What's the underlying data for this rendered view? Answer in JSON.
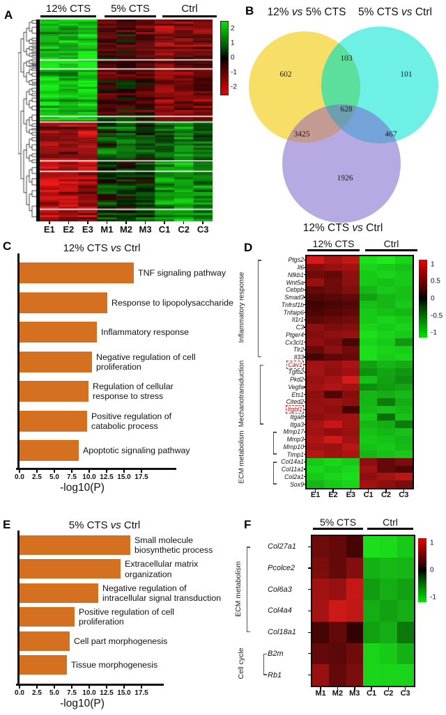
{
  "panel_labels": {
    "a": "A",
    "b": "B",
    "c": "C",
    "d": "D",
    "e": "E",
    "f": "F"
  },
  "panel_a": {
    "groups": [
      {
        "label": "12% CTS"
      },
      {
        "label": "5% CTS"
      },
      {
        "label": "Ctrl"
      }
    ],
    "columns": [
      "E1",
      "E2",
      "E3",
      "M1",
      "M2",
      "M3",
      "C1",
      "C2",
      "C3"
    ],
    "colorbar_ticks": [
      "2",
      "1",
      "0",
      "-1",
      "-2"
    ],
    "heatmap": {
      "rows": 96,
      "scale_max": 2.0,
      "blocks": [
        {
          "until": 0.48,
          "profile": [
            1.5,
            1.35,
            1.6,
            -0.45,
            -0.25,
            -0.5,
            -1.1,
            -0.85,
            -0.75
          ]
        },
        {
          "until": 0.505,
          "profile": [
            1.8,
            1.7,
            1.8,
            0.3,
            0.4,
            0.2,
            -1.2,
            -0.5,
            -0.9
          ]
        },
        {
          "until": 0.7,
          "profile": [
            -1.2,
            -1.05,
            -1.3,
            0.45,
            0.55,
            0.25,
            0.6,
            0.8,
            0.55
          ]
        },
        {
          "until": 1.0,
          "profile": [
            -1.5,
            -1.35,
            -1.25,
            0.25,
            0.15,
            0.4,
            1.1,
            1.35,
            0.95
          ]
        }
      ],
      "separators": [
        0.2,
        0.245,
        0.48,
        0.508,
        0.7,
        0.752,
        0.94
      ]
    }
  },
  "panel_b": {
    "set_labels": [
      "12% vs 5% CTS",
      "5% CTS vs Ctrl",
      "12% CTS vs Ctrl"
    ],
    "counts": {
      "a": "602",
      "b": "101",
      "c": "1926",
      "ab": "103",
      "ac": "3425",
      "bc": "467",
      "abc": "628"
    },
    "colors": {
      "a": "#f6de67",
      "b": "#6ff0e6",
      "c": "#b7a9e2",
      "ab": "#5cdf9d",
      "ac": "#c49b92",
      "bc": "#74a3da",
      "abc": "#6e9fae"
    }
  },
  "chart_data": [
    {
      "id": "panel_c",
      "type": "bar",
      "orientation": "horizontal",
      "title": "12% CTS vs Ctrl",
      "categories": [
        "TNF signaling pathway",
        "Response to lipopolysaccharide",
        "Inflammatory response",
        "Negative regulation of cell proliferation",
        "Regulation of cellular response to stress",
        "Positive regulation of catabolic process",
        "Apoptotic signaling pathway"
      ],
      "category_lines": [
        [
          "TNF signaling pathway"
        ],
        [
          "Response to lipopolysaccharide"
        ],
        [
          "Inflammatory response"
        ],
        [
          "Negative regulation of cell",
          "proliferation"
        ],
        [
          "Regulation of cellular",
          "response to stress"
        ],
        [
          "Positive regulation of",
          "catabolic process"
        ],
        [
          "Apoptotic signaling pathway"
        ]
      ],
      "values": [
        16.4,
        12.6,
        11.1,
        10.4,
        9.9,
        9.7,
        8.5
      ],
      "xticks": [
        0,
        2.5,
        5,
        7.5,
        10,
        12.5,
        15,
        17.5
      ],
      "xlabel": "-log10(P)",
      "xlim": [
        0,
        20
      ],
      "bar_color": "#d4701f"
    },
    {
      "id": "panel_e",
      "type": "bar",
      "orientation": "horizontal",
      "title": "5% CTS vs Ctrl",
      "categories": [
        "Small molecule biosynthetic process",
        "Extracellular matrix organization",
        "Negative regulation of intracellular signal transduction",
        "Positive regulation of cell proliferation",
        "Cell part morphogenesis",
        "Tissue morphogenesis"
      ],
      "category_lines": [
        [
          "Small molecule",
          "biosynthetic process"
        ],
        [
          "Extracellular matrix",
          "organization"
        ],
        [
          "Negative regulation of",
          "intracellular signal transduction"
        ],
        [
          "Positive regulation of cell",
          "proliferation"
        ],
        [
          "Cell part morphogenesis"
        ],
        [
          "Tissue morphogenesis"
        ]
      ],
      "values": [
        15.9,
        14.5,
        11.3,
        7.9,
        7.2,
        6.8
      ],
      "xticks": [
        0,
        2.5,
        5,
        7.5,
        10,
        12.5,
        15,
        17.5
      ],
      "xlabel": "-log10(P)",
      "xlim": [
        0,
        20
      ],
      "bar_color": "#d4701f"
    },
    {
      "id": "panel_d",
      "type": "heatmap",
      "group_headers": [
        "12% CTS",
        "Ctrl"
      ],
      "columns": [
        "E1",
        "E2",
        "E3",
        "C1",
        "C2",
        "C3"
      ],
      "colorbar_ticks": [
        "1",
        "0.5",
        "0",
        "-0.5",
        "-1"
      ],
      "categories": [
        {
          "name": "Inflammatory response",
          "from": 0,
          "to": 13
        },
        {
          "name": "Mechanotransduction",
          "from": 14,
          "to": 22
        },
        {
          "name": "ECM metabolism",
          "from": 23,
          "to": 30,
          "brackets": [
            [
              23,
              26
            ],
            [
              27,
              30
            ]
          ]
        }
      ],
      "rows": [
        {
          "gene": "Ptgs2",
          "values": [
            0.85,
            0.65,
            0.75,
            -0.9,
            -0.95,
            -0.85
          ]
        },
        {
          "gene": "Il6",
          "values": [
            0.45,
            0.55,
            0.6,
            -0.85,
            -0.8,
            -0.75
          ]
        },
        {
          "gene": "Nfkb1",
          "values": [
            0.35,
            0.3,
            0.5,
            -0.8,
            -0.85,
            -0.8
          ]
        },
        {
          "gene": "Wnt5a",
          "values": [
            0.55,
            0.35,
            0.5,
            -0.8,
            -0.75,
            -0.8
          ]
        },
        {
          "gene": "Cebpb",
          "values": [
            0.3,
            0.35,
            0.45,
            -0.7,
            -0.8,
            -0.75
          ]
        },
        {
          "gene": "Smad3",
          "values": [
            0.2,
            0.25,
            0.3,
            -0.6,
            -0.7,
            -0.75
          ]
        },
        {
          "gene": "Tnfrsf1b",
          "values": [
            0.12,
            0.18,
            0.22,
            -0.75,
            -0.7,
            -0.8
          ]
        },
        {
          "gene": "Tnfaip6",
          "values": [
            0.18,
            0.22,
            0.28,
            -0.8,
            -0.75,
            -0.7
          ]
        },
        {
          "gene": "Il1r1",
          "values": [
            0.28,
            0.32,
            0.38,
            -0.8,
            -0.85,
            -0.8
          ]
        },
        {
          "gene": "C3",
          "values": [
            0.5,
            0.42,
            0.48,
            -0.85,
            -0.8,
            -0.85
          ]
        },
        {
          "gene": "Ptger4",
          "values": [
            0.45,
            0.5,
            0.55,
            -0.9,
            -0.85,
            -0.8
          ]
        },
        {
          "gene": "Cx3cl1",
          "values": [
            0.5,
            0.42,
            0.18,
            -0.85,
            -0.8,
            -0.55
          ]
        },
        {
          "gene": "Tlr2",
          "values": [
            0.32,
            0.5,
            0.38,
            -0.9,
            -0.85,
            -0.82
          ]
        },
        {
          "gene": "Il33",
          "values": [
            0.15,
            0.28,
            0.32,
            -0.9,
            -0.82,
            -0.86
          ]
        },
        {
          "gene": "Cav1",
          "boxed": true,
          "values": [
            0.6,
            0.55,
            0.65,
            -0.6,
            -0.7,
            -0.65
          ]
        },
        {
          "gene": "Tgfb2",
          "values": [
            0.62,
            0.5,
            0.58,
            -0.52,
            -0.62,
            -0.55
          ]
        },
        {
          "gene": "Pkd2",
          "values": [
            0.55,
            0.62,
            0.85,
            -0.75,
            -0.6,
            -0.5
          ]
        },
        {
          "gene": "Vegfa",
          "values": [
            0.6,
            0.68,
            0.6,
            -0.5,
            -0.58,
            -0.62
          ]
        },
        {
          "gene": "Ets1",
          "values": [
            0.5,
            0.2,
            0.48,
            -0.7,
            -0.66,
            -0.72
          ]
        },
        {
          "gene": "Cited2",
          "values": [
            0.52,
            0.56,
            0.5,
            -0.7,
            -0.42,
            -0.66
          ]
        },
        {
          "gene": "Itgbl1",
          "boxed": true,
          "values": [
            0.55,
            0.5,
            0.15,
            -0.72,
            -0.76,
            -0.7
          ]
        },
        {
          "gene": "Itga8",
          "values": [
            0.5,
            0.56,
            0.6,
            -0.8,
            -0.35,
            -0.76
          ]
        },
        {
          "gene": "Itga3",
          "values": [
            0.62,
            0.78,
            0.6,
            -0.7,
            -0.66,
            -0.42
          ]
        },
        {
          "gene": "Mmp17",
          "values": [
            0.6,
            0.5,
            0.56,
            -0.76,
            -0.7,
            -0.76
          ]
        },
        {
          "gene": "Mmp3",
          "values": [
            0.66,
            0.82,
            0.6,
            -0.8,
            -0.76,
            -0.7
          ]
        },
        {
          "gene": "Mmp10",
          "values": [
            0.6,
            0.56,
            0.72,
            -0.76,
            -0.8,
            -0.72
          ]
        },
        {
          "gene": "Timp1",
          "values": [
            0.7,
            0.6,
            0.66,
            -0.7,
            -0.76,
            -0.8
          ]
        },
        {
          "gene": "Col14a1",
          "values": [
            -0.8,
            -0.86,
            -0.8,
            0.5,
            0.3,
            0.42
          ]
        },
        {
          "gene": "Col11a1",
          "values": [
            -0.86,
            -0.8,
            -0.86,
            0.6,
            0.3,
            0.2
          ]
        },
        {
          "gene": "Col2a1",
          "values": [
            -0.8,
            -0.86,
            -0.9,
            0.5,
            0.62,
            0.72
          ]
        },
        {
          "gene": "Sox9",
          "values": [
            -0.7,
            -0.8,
            -0.86,
            0.6,
            0.5,
            0.42
          ]
        }
      ]
    },
    {
      "id": "panel_f",
      "type": "heatmap",
      "group_headers": [
        "5% CTS",
        "Ctrl"
      ],
      "columns": [
        "M1",
        "M2",
        "M3",
        "C1",
        "C2",
        "C3"
      ],
      "colorbar_ticks": [
        "1",
        "0",
        "-1"
      ],
      "categories": [
        {
          "name": "ECM metabolism",
          "from": 0,
          "to": 4
        },
        {
          "name": "Cell cycle",
          "from": 5,
          "to": 6
        }
      ],
      "rows": [
        {
          "gene": "Col27a1",
          "values": [
            0.35,
            0.3,
            0.15,
            -0.9,
            -0.88,
            -0.8
          ]
        },
        {
          "gene": "Pcolce2",
          "values": [
            0.42,
            0.3,
            0.45,
            -0.68,
            -0.72,
            -0.7
          ]
        },
        {
          "gene": "Col6a3",
          "values": [
            0.6,
            0.55,
            0.78,
            -0.58,
            -0.66,
            -0.6
          ]
        },
        {
          "gene": "Col4a4",
          "values": [
            0.62,
            0.82,
            0.75,
            -0.66,
            -0.6,
            -0.66
          ]
        },
        {
          "gene": "Col18a1",
          "values": [
            0.15,
            0.3,
            0.06,
            -0.6,
            -0.66,
            -0.4
          ]
        },
        {
          "gene": "B2m",
          "values": [
            0.3,
            0.26,
            0.36,
            -0.85,
            -0.8,
            -0.68
          ]
        },
        {
          "gene": "Rb1",
          "values": [
            0.55,
            0.3,
            0.42,
            -0.86,
            -0.85,
            -0.85
          ]
        }
      ]
    }
  ]
}
